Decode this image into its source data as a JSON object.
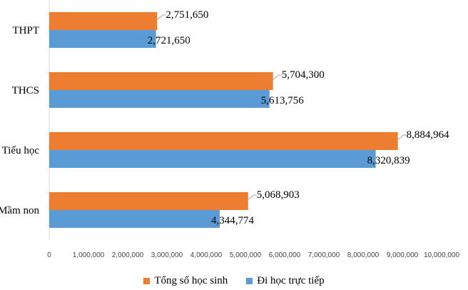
{
  "chart_data": {
    "type": "bar",
    "orientation": "horizontal",
    "categories": [
      "Mầm non",
      "Tiểu học",
      "THCS",
      "THPT"
    ],
    "series": [
      {
        "name": "Tổng số học sinh",
        "color": "#ED7D31",
        "values": [
          5068903,
          8884964,
          5704300,
          2751650
        ],
        "labels": [
          "5,068,903",
          "8,884,964",
          "5,704,300",
          "2,751,650"
        ]
      },
      {
        "name": "Đi học trực tiếp",
        "color": "#5B9BD5",
        "values": [
          4344774,
          8320839,
          5613756,
          2721650
        ],
        "labels": [
          "4,344,774",
          "8,320,839",
          "5,613,756",
          "2,721,650"
        ]
      }
    ],
    "xlim": [
      0,
      10000000
    ],
    "xticks": [
      0,
      1000000,
      2000000,
      3000000,
      4000000,
      5000000,
      6000000,
      7000000,
      8000000,
      9000000,
      10000000
    ],
    "xtick_labels": [
      "0",
      "1,000,000",
      "2,000,000",
      "3,000,000",
      "4,000,000",
      "5,000,000",
      "6,000,000",
      "7,000,000",
      "8,000,000",
      "9,000,000",
      "10,000,000"
    ],
    "legend_position": "bottom",
    "grid": false
  }
}
